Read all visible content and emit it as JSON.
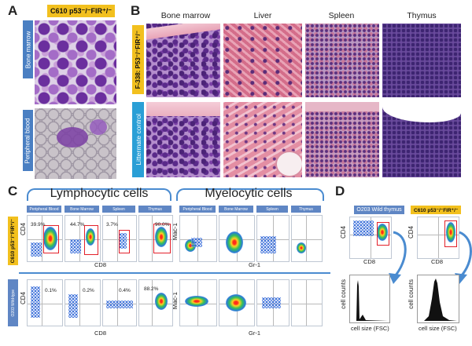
{
  "panels": {
    "a": "A",
    "b": "B",
    "c": "C",
    "d": "D"
  },
  "panel_a": {
    "genotype": "C610 p53⁻/⁻FIR⁺/⁻",
    "rows": [
      "Bone marrow",
      "Peripheral blood"
    ]
  },
  "panel_b": {
    "columns": [
      "Bone marrow",
      "Liver",
      "Spleen",
      "Thymus"
    ],
    "row_labels": [
      "F-338: P53⁻/⁻FIR⁺/⁻",
      "Littermate control"
    ]
  },
  "panel_c": {
    "group_lymph": "Lymphocytic cells",
    "group_myelo": "Myelocytic cells",
    "tissues": [
      "Peripheral Blood",
      "Bone Marrow",
      "Spleen",
      "Thymus"
    ],
    "row_labels": [
      "C610 p53⁻/⁻FIR⁺/⁻",
      "O203 Wild-type"
    ],
    "lymph_ylabel": "CD4",
    "lymph_xlabel": "CD8",
    "myelo_ylabel": "Mac-1",
    "myelo_xlabel": "Gr-1",
    "top_percents": [
      "39.9%",
      "44.7%",
      "3.7%",
      "90.0%"
    ],
    "bottom_percents": [
      "0.1%",
      "0.2%",
      "0.4%",
      "88.2%"
    ]
  },
  "panel_d": {
    "left_title": "O203 Wild  thymus",
    "right_title": "C610 p53⁻/⁻FIR⁺/⁻",
    "ylabel": "CD4",
    "xlabel": "CD8",
    "hist_ylabel": "cell counts",
    "hist_xlabel": "cell size (FSC)"
  }
}
